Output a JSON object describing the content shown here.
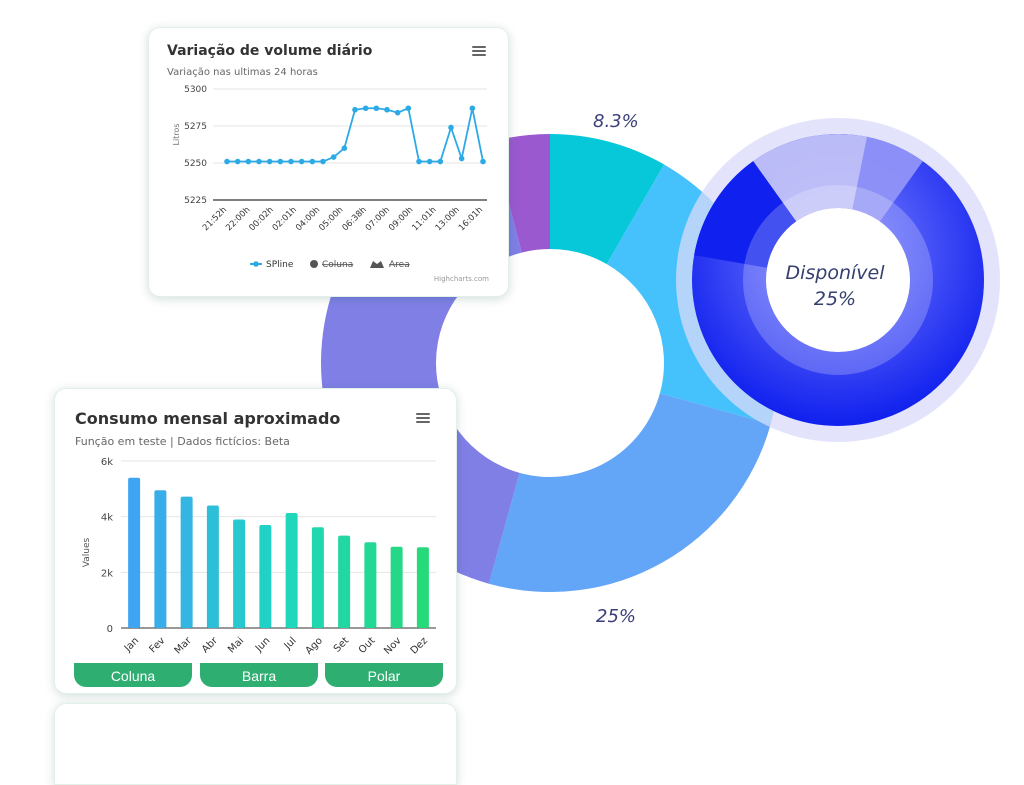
{
  "donut": {
    "label_top": "8.3%",
    "label_bottom": "25%",
    "slices": [
      {
        "value": 8.3,
        "color": "#06c8d9"
      },
      {
        "value": 21.0,
        "color": "#45c2fb"
      },
      {
        "value": 25.0,
        "color": "#63a5f7"
      },
      {
        "value": 41.7,
        "color": "#7f7fe6"
      },
      {
        "value": 4.0,
        "color": "#9b59d0"
      }
    ]
  },
  "gauge": {
    "label": "Disponível",
    "value_label": "25%",
    "value": 25,
    "colors": {
      "fill": "#1020ee",
      "track": "#c9c9f7",
      "highlight": "#6d72f6"
    }
  },
  "card1": {
    "title": "Variação de volume diário",
    "subtitle": "Variação nas ultimas 24 horas",
    "ylabel": "Litros",
    "credit": "Highcharts.com",
    "legend": [
      "SPline",
      "Coluna",
      "Area"
    ]
  },
  "card2": {
    "title": "Consumo mensal aproximado",
    "subtitle": "Função em teste | Dados fictícios: Beta",
    "ylabel": "Values",
    "buttons": [
      "Coluna",
      "Barra",
      "Polar"
    ]
  },
  "chart_data": [
    {
      "type": "line",
      "title": "Variação de volume diário",
      "subtitle": "Variação nas ultimas 24 horas",
      "ylabel": "Litros",
      "xlabel": "",
      "ylim": [
        5225,
        5300
      ],
      "yticks": [
        5225,
        5250,
        5275,
        5300
      ],
      "xtick_labels": [
        "21:52h",
        "22:00h",
        "00:02h",
        "02:01h",
        "04:00h",
        "05:00h",
        "06:38h",
        "07:00h",
        "09:00h",
        "11:01h",
        "13:00h",
        "16:01h"
      ],
      "series": [
        {
          "name": "SPline",
          "color": "#2caae6",
          "values": [
            5251,
            5251,
            5251,
            5251,
            5251,
            5251,
            5251,
            5251,
            5251,
            5251,
            5254,
            5260,
            5286,
            5287,
            5287,
            5286,
            5284,
            5287,
            5251,
            5251,
            5251,
            5274,
            5253,
            5287,
            5251
          ]
        }
      ],
      "legend": [
        "SPline",
        "Coluna",
        "Area"
      ]
    },
    {
      "type": "bar",
      "title": "Consumo mensal aproximado",
      "subtitle": "Função em teste | Dados fictícios: Beta",
      "ylabel": "Values",
      "xlabel": "",
      "ylim": [
        0,
        6000
      ],
      "yticks": [
        {
          "v": 0,
          "t": "0"
        },
        {
          "v": 2000,
          "t": "2k"
        },
        {
          "v": 4000,
          "t": "4k"
        },
        {
          "v": 6000,
          "t": "6k"
        }
      ],
      "categories": [
        "Jan",
        "Fev",
        "Mar",
        "Abr",
        "Mai",
        "Jun",
        "Jul",
        "Ago",
        "Set",
        "Out",
        "Nov",
        "Dez"
      ],
      "values": [
        5400,
        4950,
        4720,
        4400,
        3900,
        3700,
        4130,
        3620,
        3320,
        3080,
        2920,
        2900
      ],
      "gradient": [
        "#3fa4f2",
        "#1fd6c2",
        "#26d97a"
      ]
    }
  ]
}
